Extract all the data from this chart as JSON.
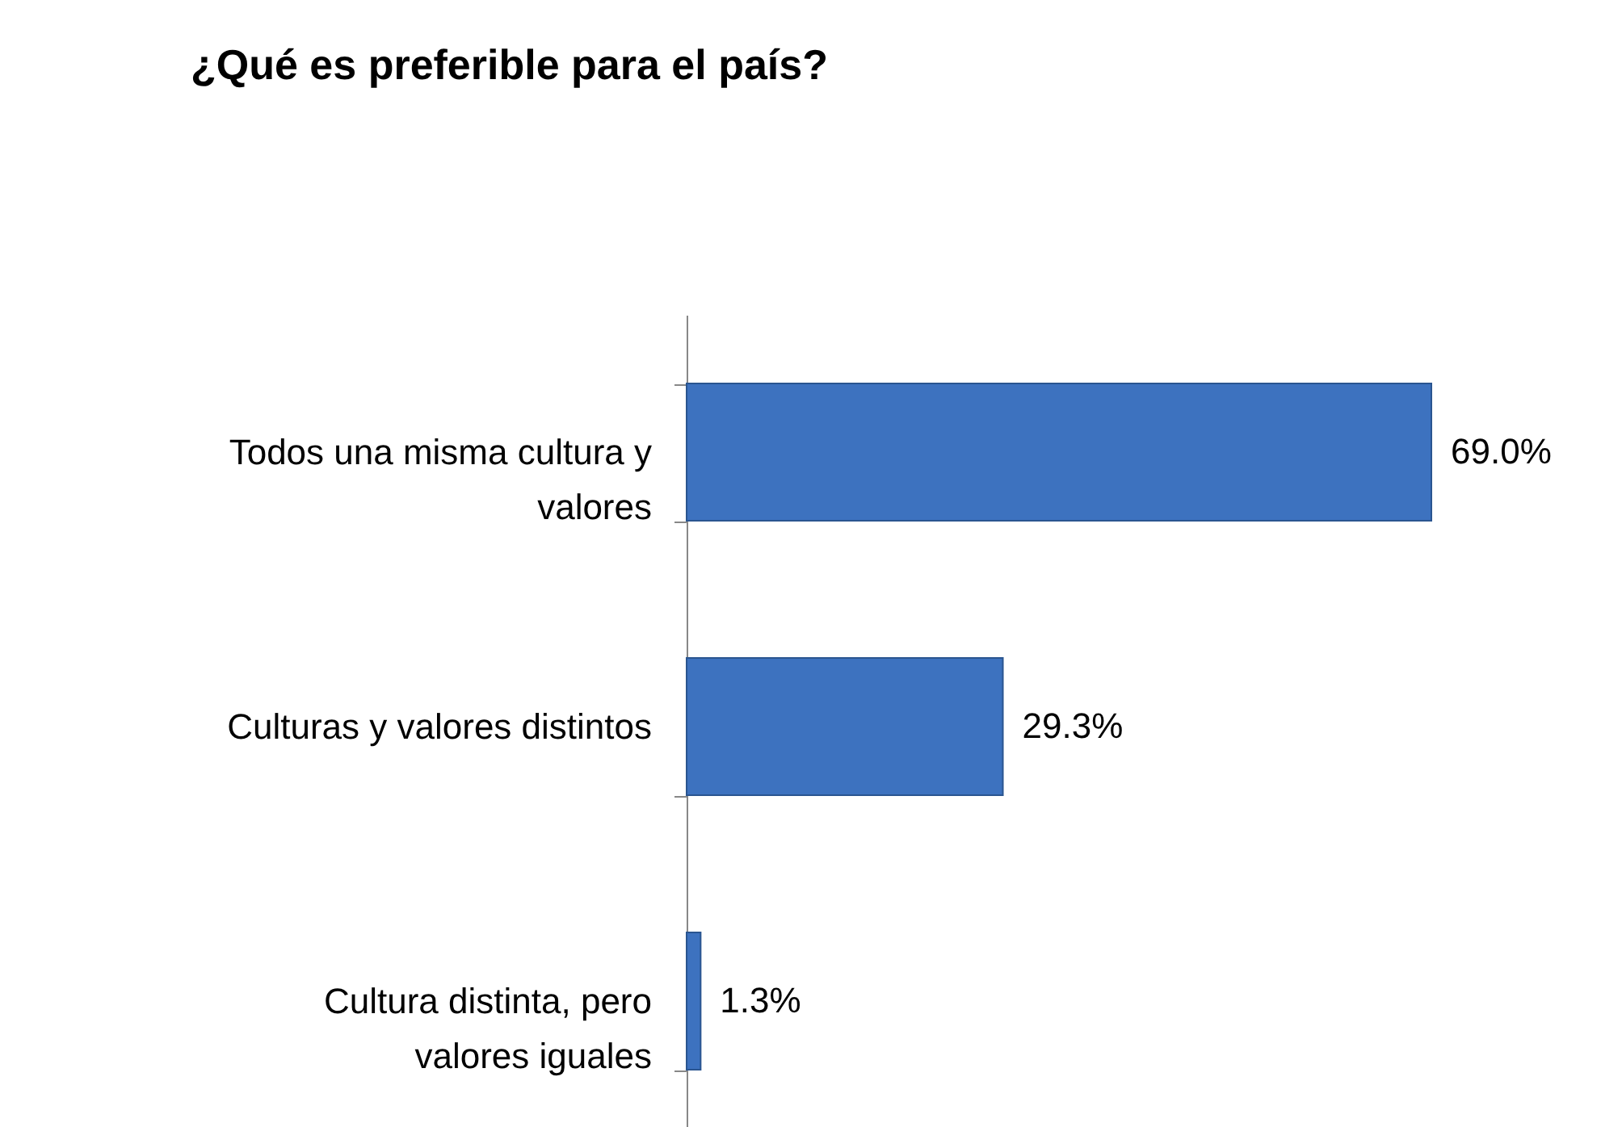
{
  "chart_data": {
    "type": "bar",
    "orientation": "horizontal",
    "title": "¿Qué es preferible para el país?",
    "categories": [
      "Todos una misma cultura y valores",
      "Culturas y valores distintos",
      "Cultura distinta, pero valores iguales"
    ],
    "values": [
      69.0,
      29.3,
      1.3
    ],
    "value_labels": [
      "69.0%",
      "29.3%",
      "1.3%"
    ],
    "color": "#3d72bf"
  }
}
